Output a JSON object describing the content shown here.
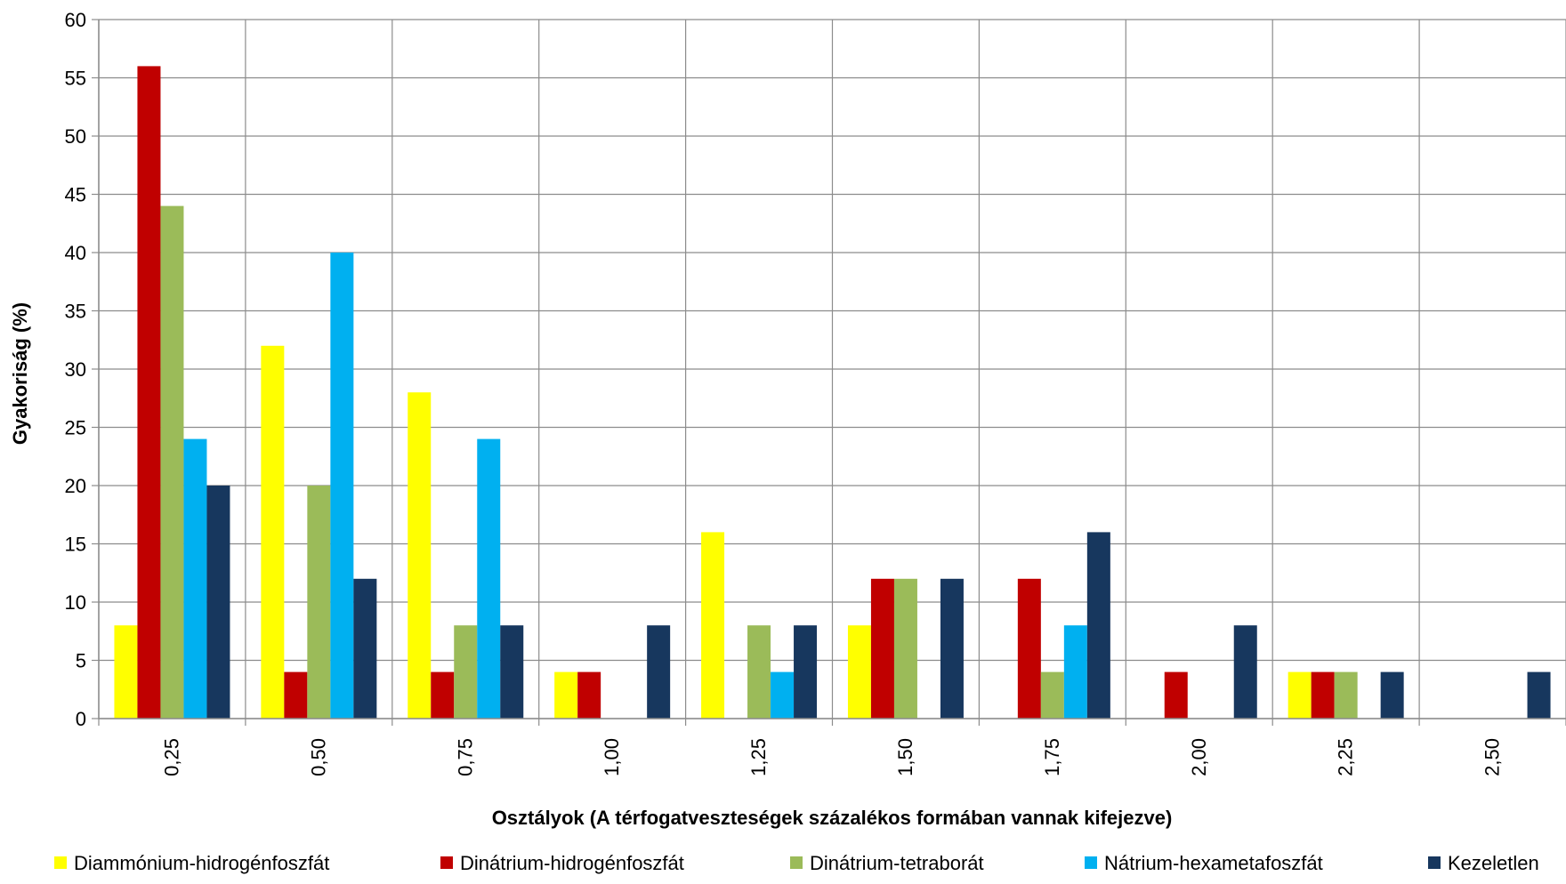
{
  "chart_data": {
    "type": "bar",
    "title": "",
    "xlabel": "Osztályok (A térfogatveszteségek százalékos formában vannak kifejezve)",
    "ylabel": "Gyakoriság (%)",
    "ylim": [
      0,
      60
    ],
    "yticks": [
      "0",
      "5",
      "10",
      "15",
      "20",
      "25",
      "30",
      "35",
      "40",
      "45",
      "50",
      "55",
      "60"
    ],
    "grid": true,
    "legend_position": "bottom",
    "categories": [
      "0,25",
      "0,50",
      "0,75",
      "1,00",
      "1,25",
      "1,50",
      "1,75",
      "2,00",
      "2,25",
      "2,50"
    ],
    "series": [
      {
        "name": "Diammónium-hidrogénfoszfát",
        "color": "#FFFF00",
        "values": [
          8,
          32,
          28,
          4,
          16,
          8,
          0,
          0,
          4,
          0
        ]
      },
      {
        "name": "Dinátrium-hidrogénfoszfát",
        "color": "#C00000",
        "values": [
          56,
          4,
          4,
          4,
          0,
          12,
          12,
          4,
          4,
          0
        ]
      },
      {
        "name": "Dinátrium-tetraborát",
        "color": "#9BBB59",
        "values": [
          44,
          20,
          8,
          0,
          8,
          12,
          4,
          0,
          4,
          0
        ]
      },
      {
        "name": "Nátrium-hexametafoszfát",
        "color": "#00B0F0",
        "values": [
          24,
          40,
          24,
          0,
          4,
          0,
          8,
          0,
          0,
          0
        ]
      },
      {
        "name": "Kezeletlen",
        "color": "#17375E",
        "values": [
          20,
          12,
          8,
          8,
          8,
          12,
          16,
          8,
          4,
          4
        ]
      }
    ]
  }
}
